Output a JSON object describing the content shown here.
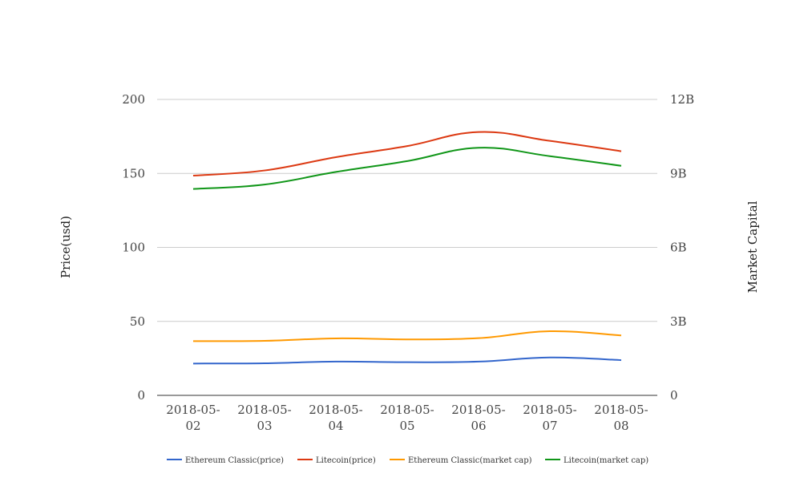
{
  "chart_data": {
    "type": "line",
    "categories": [
      "2018-05-02",
      "2018-05-03",
      "2018-05-04",
      "2018-05-05",
      "2018-05-06",
      "2018-05-07",
      "2018-05-08"
    ],
    "category_lines": [
      [
        "2018-05-",
        "02"
      ],
      [
        "2018-05-",
        "03"
      ],
      [
        "2018-05-",
        "04"
      ],
      [
        "2018-05-",
        "05"
      ],
      [
        "2018-05-",
        "06"
      ],
      [
        "2018-05-",
        "07"
      ],
      [
        "2018-05-",
        "08"
      ]
    ],
    "ylabel": "Price(usd)",
    "y2label": "Market Capital",
    "ylim": [
      0,
      200
    ],
    "y2lim": [
      0,
      12000000000
    ],
    "yticks": [
      "0",
      "50",
      "100",
      "150",
      "200"
    ],
    "y2ticks": [
      "0",
      "3B",
      "6B",
      "9B",
      "12B"
    ],
    "grid": true,
    "legend_position": "bottom",
    "series": [
      {
        "name": "Ethereum Classic(price)",
        "axis": "left",
        "color": "#3366cc",
        "values": [
          21.5,
          21.7,
          22.8,
          22.4,
          22.8,
          25.6,
          23.8
        ]
      },
      {
        "name": "Litecoin(price)",
        "axis": "left",
        "color": "#dc3912",
        "values": [
          148.5,
          152,
          161,
          168.5,
          178,
          172,
          165
        ]
      },
      {
        "name": "Ethereum Classic(market cap)",
        "axis": "right",
        "color": "#ff9900",
        "values": [
          2200000000,
          2210000000,
          2310000000,
          2270000000,
          2320000000,
          2600000000,
          2430000000
        ]
      },
      {
        "name": "Litecoin(market cap)",
        "axis": "right",
        "color": "#109618",
        "values": [
          8370000000,
          8550000000,
          9060000000,
          9500000000,
          10040000000,
          9700000000,
          9310000000
        ]
      }
    ]
  }
}
